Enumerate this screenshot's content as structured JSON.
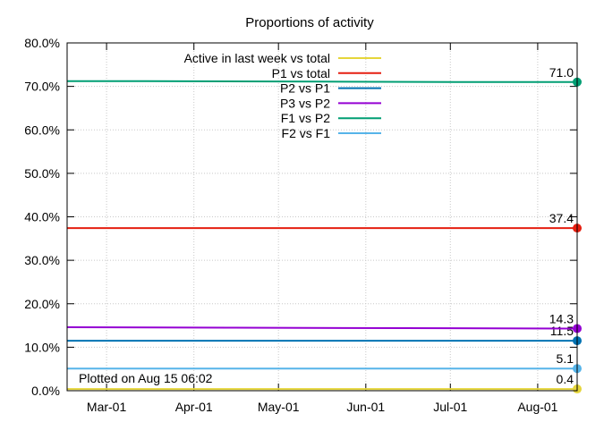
{
  "chart_data": {
    "type": "line",
    "title": "Proportions of activity",
    "xlabel": "",
    "ylabel": "",
    "x_ticks": [
      "Mar-01",
      "Apr-01",
      "May-01",
      "Jun-01",
      "Jul-01",
      "Aug-01"
    ],
    "x_range": [
      "2023-02-15",
      "2023-08-15"
    ],
    "y_ticks": [
      "0.0%",
      "10.0%",
      "20.0%",
      "30.0%",
      "40.0%",
      "50.0%",
      "60.0%",
      "70.0%",
      "80.0%"
    ],
    "ylim": [
      0,
      80
    ],
    "grid": true,
    "legend_position": "top-right",
    "series": [
      {
        "name": "Active in last week vs total",
        "color": "#e5d53a",
        "x": [
          "2023-02-15",
          "2023-08-15"
        ],
        "values": [
          0.4,
          0.4
        ],
        "end_label": "0.4"
      },
      {
        "name": "P1 vs total",
        "color": "#e51e10",
        "x": [
          "2023-02-15",
          "2023-08-15"
        ],
        "values": [
          37.4,
          37.4
        ],
        "end_label": "37.4"
      },
      {
        "name": "P2 vs P1",
        "color": "#0072b2",
        "x": [
          "2023-02-15",
          "2023-08-15"
        ],
        "values": [
          11.5,
          11.5
        ],
        "end_label": "11.5"
      },
      {
        "name": "P3 vs P2",
        "color": "#9400d3",
        "x": [
          "2023-02-15",
          "2023-04-15",
          "2023-06-15",
          "2023-08-15"
        ],
        "values": [
          14.6,
          14.5,
          14.4,
          14.3
        ],
        "end_label": "14.3"
      },
      {
        "name": "F1 vs P2",
        "color": "#009e73",
        "x": [
          "2023-02-15",
          "2023-03-15",
          "2023-05-15",
          "2023-07-15",
          "2023-08-15"
        ],
        "values": [
          71.2,
          71.2,
          71.1,
          71.0,
          71.0
        ],
        "end_label": "71.0"
      },
      {
        "name": "F2 vs F1",
        "color": "#56b4e9",
        "x": [
          "2023-02-15",
          "2023-08-15"
        ],
        "values": [
          5.1,
          5.1
        ],
        "end_label": "5.1"
      }
    ],
    "annotation": "Plotted on Aug 15 06:02"
  }
}
